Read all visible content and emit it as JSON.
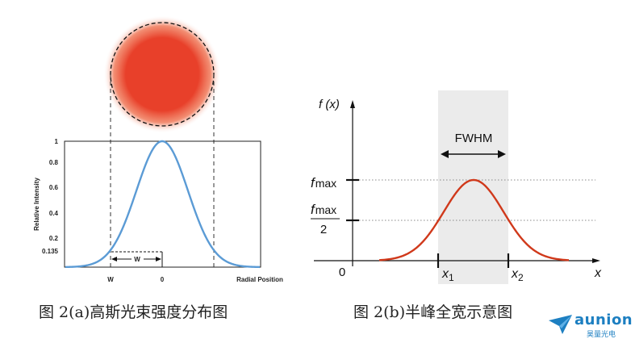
{
  "left_panel": {
    "ylabel": "Relative Intensity",
    "xlabel": "Radial Position",
    "y_ticks": [
      "1",
      "0.8",
      "0.6",
      "0.4",
      "0.2",
      "0.135"
    ],
    "x_ticks": [
      "W",
      "0"
    ],
    "w_label": "W",
    "beam_color": "#e8402a",
    "curve_color": "#5b9bd5"
  },
  "right_panel": {
    "fx_label": "f (x)",
    "fwhm_label": "FWHM",
    "fmax_label": "f",
    "fmax_sub": "max",
    "half_label_top": "f",
    "half_label_sub": "max",
    "half_label_bottom": "2",
    "origin": "0",
    "x1": "x",
    "x1_sub": "1",
    "x2": "x",
    "x2_sub": "2",
    "x_axis": "x",
    "curve_color": "#d0391b",
    "band_color": "#ebebeb"
  },
  "captions": {
    "left": "图 2(a)高斯光束强度分布图",
    "right": "图 2(b)半峰全宽示意图"
  },
  "logo": {
    "name": "aunion",
    "subtitle": "昊量光电",
    "color": "#1d7fc1"
  }
}
